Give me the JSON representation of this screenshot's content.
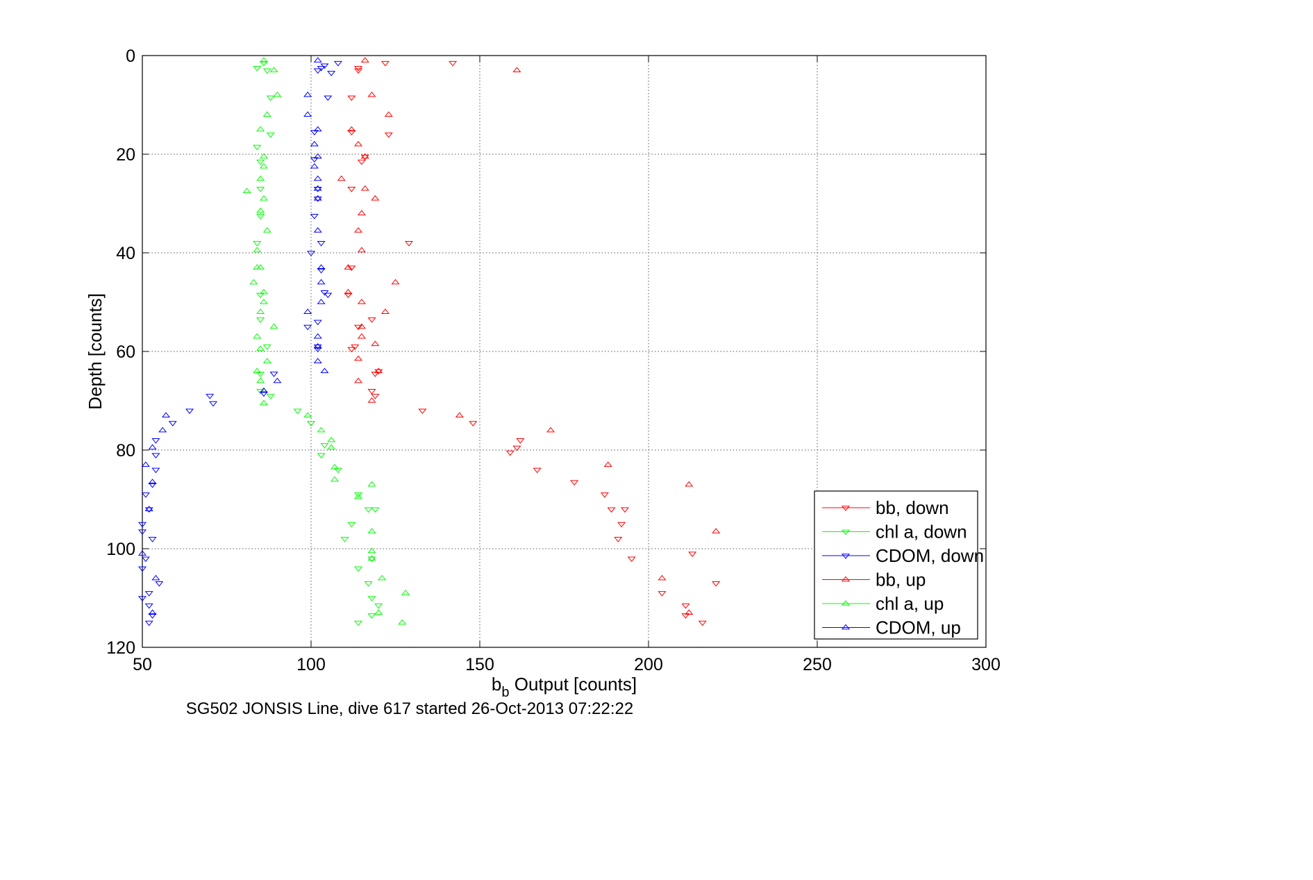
{
  "chart_data": {
    "type": "scatter",
    "title": "",
    "xlabel_base": "b",
    "xlabel_sub": "b",
    "xlabel_rest": " Output [counts]",
    "ylabel": "Depth [counts]",
    "caption": "SG502 JONSIS Line, dive 617 started 26-Oct-2013 07:22:22",
    "xlim": [
      50,
      300
    ],
    "ylim": [
      0,
      120
    ],
    "y_reversed": true,
    "grid": true,
    "grid_style": "dotted",
    "xticks": [
      50,
      100,
      150,
      200,
      250,
      300
    ],
    "yticks": [
      0,
      20,
      40,
      60,
      80,
      100,
      120
    ],
    "legend_position": "bottom-right",
    "series": [
      {
        "name": "bb, down",
        "color": "#ff0000",
        "marker": "triangle-down",
        "points": [
          [
            142,
            1.5
          ],
          [
            122,
            1.5
          ],
          [
            114,
            2.5
          ],
          [
            114,
            3
          ],
          [
            112,
            8.5
          ],
          [
            123,
            16
          ],
          [
            112,
            15.5
          ],
          [
            116,
            20.5
          ],
          [
            115,
            21.5
          ],
          [
            112,
            27
          ],
          [
            129,
            38
          ],
          [
            112,
            43
          ],
          [
            111,
            48.5
          ],
          [
            118,
            53.5
          ],
          [
            114,
            55
          ],
          [
            113,
            59
          ],
          [
            112,
            59.5
          ],
          [
            120,
            64
          ],
          [
            119,
            64.5
          ],
          [
            118,
            68
          ],
          [
            119,
            69
          ],
          [
            133,
            72
          ],
          [
            148,
            74.5
          ],
          [
            162,
            78
          ],
          [
            161,
            79.5
          ],
          [
            159,
            80.5
          ],
          [
            167,
            84
          ],
          [
            178,
            86.5
          ],
          [
            187,
            89
          ],
          [
            189,
            92
          ],
          [
            193,
            92
          ],
          [
            192,
            95
          ],
          [
            191,
            98
          ],
          [
            195,
            102
          ],
          [
            213,
            101
          ],
          [
            220,
            107
          ],
          [
            204,
            109
          ],
          [
            211,
            111.5
          ],
          [
            211,
            113.5
          ],
          [
            216,
            115
          ]
        ]
      },
      {
        "name": "chl a, down",
        "color": "#00ff00",
        "marker": "triangle-down",
        "points": [
          [
            86,
            1.5
          ],
          [
            84,
            2.5
          ],
          [
            87,
            3
          ],
          [
            88,
            8.5
          ],
          [
            88,
            16
          ],
          [
            84,
            18.5
          ],
          [
            85,
            21.5
          ],
          [
            85,
            27
          ],
          [
            85,
            32.5
          ],
          [
            84,
            38
          ],
          [
            85,
            48.5
          ],
          [
            85,
            53.5
          ],
          [
            87,
            59
          ],
          [
            85,
            64.5
          ],
          [
            85,
            68
          ],
          [
            88,
            69
          ],
          [
            96,
            72
          ],
          [
            100,
            74.5
          ],
          [
            104,
            79
          ],
          [
            103,
            81
          ],
          [
            108,
            84
          ],
          [
            114,
            89
          ],
          [
            117,
            92
          ],
          [
            112,
            95
          ],
          [
            110,
            98
          ],
          [
            118,
            102
          ],
          [
            114,
            104
          ],
          [
            117,
            107
          ],
          [
            118,
            110
          ],
          [
            120,
            111.5
          ],
          [
            118,
            113.5
          ],
          [
            114,
            115
          ],
          [
            119,
            92
          ]
        ]
      },
      {
        "name": "CDOM, down",
        "color": "#0000ff",
        "marker": "triangle-down",
        "points": [
          [
            108,
            1.5
          ],
          [
            104,
            2
          ],
          [
            103,
            2.5
          ],
          [
            102,
            3
          ],
          [
            106,
            3.5
          ],
          [
            105,
            8.5
          ],
          [
            101,
            15.5
          ],
          [
            101,
            21
          ],
          [
            102,
            27
          ],
          [
            102,
            29
          ],
          [
            101,
            32.5
          ],
          [
            103,
            38
          ],
          [
            100,
            40
          ],
          [
            103,
            43.5
          ],
          [
            104,
            48
          ],
          [
            105,
            48.5
          ],
          [
            102,
            54
          ],
          [
            99,
            55
          ],
          [
            102,
            59
          ],
          [
            102,
            59.5
          ],
          [
            89,
            64.5
          ],
          [
            86,
            68.5
          ],
          [
            70,
            69
          ],
          [
            71,
            70.5
          ],
          [
            64,
            72
          ],
          [
            59,
            74.5
          ],
          [
            54,
            78
          ],
          [
            54,
            81
          ],
          [
            54,
            84
          ],
          [
            53,
            87
          ],
          [
            51,
            89
          ],
          [
            52,
            92
          ],
          [
            53,
            98
          ],
          [
            50,
            95
          ],
          [
            50,
            96.5
          ],
          [
            51,
            102
          ],
          [
            50,
            104
          ],
          [
            55,
            107
          ],
          [
            52,
            109
          ],
          [
            50,
            110
          ],
          [
            52,
            111.5
          ],
          [
            53,
            113.5
          ],
          [
            52,
            115
          ]
        ]
      },
      {
        "name": "bb, up",
        "color": "#ff0000",
        "marker": "triangle-up",
        "points": [
          [
            116,
            1
          ],
          [
            161,
            3
          ],
          [
            118,
            8
          ],
          [
            123,
            12
          ],
          [
            112,
            15
          ],
          [
            114,
            18
          ],
          [
            116,
            20.5
          ],
          [
            109,
            25
          ],
          [
            116,
            27
          ],
          [
            119,
            29
          ],
          [
            115,
            32
          ],
          [
            114,
            35.5
          ],
          [
            115,
            39.5
          ],
          [
            111,
            43
          ],
          [
            125,
            46
          ],
          [
            111,
            48
          ],
          [
            115,
            50
          ],
          [
            122,
            52
          ],
          [
            115,
            55
          ],
          [
            115,
            57
          ],
          [
            114,
            61.5
          ],
          [
            120,
            64
          ],
          [
            114,
            66
          ],
          [
            118,
            70
          ],
          [
            144,
            73
          ],
          [
            171,
            76
          ],
          [
            188,
            83
          ],
          [
            212,
            87
          ],
          [
            220,
            96.5
          ],
          [
            204,
            106
          ],
          [
            212,
            113
          ],
          [
            119,
            58.5
          ]
        ]
      },
      {
        "name": "chl a, up",
        "color": "#00ff00",
        "marker": "triangle-up",
        "points": [
          [
            86,
            1
          ],
          [
            89,
            3
          ],
          [
            90,
            8
          ],
          [
            87,
            12
          ],
          [
            85,
            15
          ],
          [
            86,
            20.5
          ],
          [
            86,
            22.5
          ],
          [
            85,
            25
          ],
          [
            86,
            29
          ],
          [
            85,
            31.5
          ],
          [
            87,
            35.5
          ],
          [
            84,
            39.5
          ],
          [
            84,
            43
          ],
          [
            85,
            43
          ],
          [
            83,
            46
          ],
          [
            86,
            48
          ],
          [
            86,
            50
          ],
          [
            85,
            52
          ],
          [
            89,
            55
          ],
          [
            84,
            57
          ],
          [
            85,
            59.5
          ],
          [
            87,
            62
          ],
          [
            84,
            64
          ],
          [
            85,
            66
          ],
          [
            86,
            70.5
          ],
          [
            81,
            27.5
          ],
          [
            99,
            73
          ],
          [
            103,
            76
          ],
          [
            106,
            78
          ],
          [
            106,
            79.5
          ],
          [
            107,
            83.5
          ],
          [
            107,
            86
          ],
          [
            118,
            87
          ],
          [
            114,
            89.5
          ],
          [
            118,
            96.5
          ],
          [
            118,
            100.5
          ],
          [
            118,
            102
          ],
          [
            121,
            106
          ],
          [
            128,
            109
          ],
          [
            127,
            115
          ],
          [
            120,
            113
          ]
        ]
      },
      {
        "name": "CDOM, up",
        "color": "#0000ff",
        "marker": "triangle-up",
        "points": [
          [
            102,
            1
          ],
          [
            99,
            8
          ],
          [
            99,
            12
          ],
          [
            102,
            15
          ],
          [
            101,
            18
          ],
          [
            102,
            20.5
          ],
          [
            101,
            22.5
          ],
          [
            102,
            25
          ],
          [
            102,
            27
          ],
          [
            102,
            29
          ],
          [
            102,
            35.5
          ],
          [
            103,
            43
          ],
          [
            103,
            46
          ],
          [
            103,
            50
          ],
          [
            99,
            52
          ],
          [
            102,
            57
          ],
          [
            102,
            59
          ],
          [
            102,
            62
          ],
          [
            104,
            64
          ],
          [
            90,
            66
          ],
          [
            86,
            68
          ],
          [
            57,
            73
          ],
          [
            56,
            76
          ],
          [
            53,
            79.5
          ],
          [
            51,
            83
          ],
          [
            53,
            86.5
          ],
          [
            52,
            92
          ],
          [
            54,
            106
          ],
          [
            50,
            101
          ],
          [
            53,
            113
          ]
        ]
      }
    ]
  }
}
